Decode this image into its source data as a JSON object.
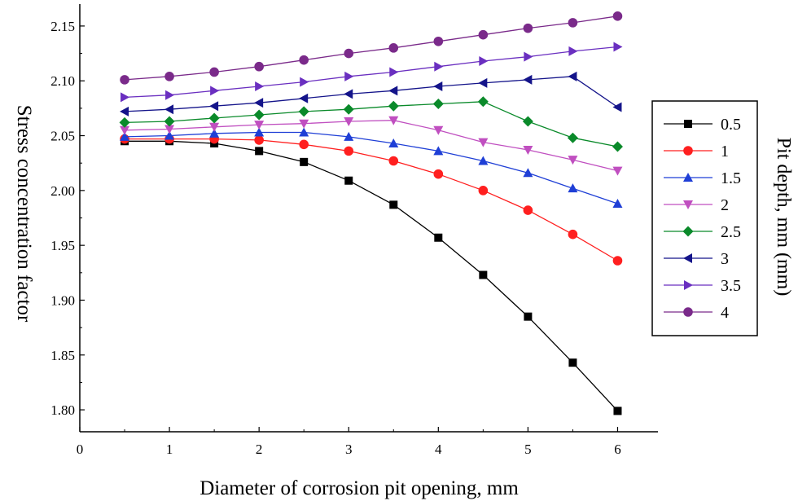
{
  "chart_data": {
    "type": "line",
    "title": "",
    "xlabel": "Diameter of corrosion pit opening, mm",
    "ylabel": "Stress concentration factor",
    "legend_title": "Pit depth, mm (mm)",
    "legend_position": "right",
    "xlim": [
      0,
      6.45
    ],
    "ylim": [
      1.78,
      2.17
    ],
    "xticks": [
      0,
      1,
      2,
      3,
      4,
      5,
      6
    ],
    "yticks": [
      1.8,
      1.85,
      1.9,
      1.95,
      2.0,
      2.05,
      2.1,
      2.15
    ],
    "x": [
      0.5,
      1,
      1.5,
      2,
      2.5,
      3,
      3.5,
      4,
      4.5,
      5,
      5.5,
      6
    ],
    "grid": false,
    "series": [
      {
        "name": "0.5",
        "color": "#000000",
        "marker": "square",
        "values": [
          2.045,
          2.045,
          2.043,
          2.036,
          2.026,
          2.009,
          1.987,
          1.957,
          1.923,
          1.885,
          1.843,
          1.799
        ]
      },
      {
        "name": "1",
        "color": "#ff1f1f",
        "marker": "circle",
        "values": [
          2.047,
          2.047,
          2.047,
          2.046,
          2.042,
          2.036,
          2.027,
          2.015,
          2.0,
          1.982,
          1.96,
          1.936
        ]
      },
      {
        "name": "1.5",
        "color": "#1f3fd6",
        "marker": "triangle-up",
        "values": [
          2.049,
          2.05,
          2.052,
          2.053,
          2.053,
          2.049,
          2.043,
          2.036,
          2.027,
          2.016,
          2.002,
          1.988
        ]
      },
      {
        "name": "2",
        "color": "#c04fc0",
        "marker": "triangle-down",
        "values": [
          2.055,
          2.056,
          2.058,
          2.06,
          2.061,
          2.063,
          2.064,
          2.055,
          2.044,
          2.037,
          2.028,
          2.018
        ]
      },
      {
        "name": "2.5",
        "color": "#0a8a2a",
        "marker": "diamond",
        "values": [
          2.062,
          2.063,
          2.066,
          2.069,
          2.072,
          2.074,
          2.077,
          2.079,
          2.081,
          2.063,
          2.048,
          2.04
        ]
      },
      {
        "name": "3",
        "color": "#14148a",
        "marker": "triangle-left",
        "values": [
          2.072,
          2.074,
          2.077,
          2.08,
          2.084,
          2.088,
          2.091,
          2.095,
          2.098,
          2.101,
          2.104,
          2.076
        ]
      },
      {
        "name": "3.5",
        "color": "#6a2fc0",
        "marker": "triangle-right",
        "values": [
          2.085,
          2.087,
          2.091,
          2.095,
          2.099,
          2.104,
          2.108,
          2.113,
          2.118,
          2.122,
          2.127,
          2.131
        ]
      },
      {
        "name": "4",
        "color": "#7a2a8a",
        "marker": "circle",
        "values": [
          2.101,
          2.104,
          2.108,
          2.113,
          2.119,
          2.125,
          2.13,
          2.136,
          2.142,
          2.148,
          2.153,
          2.159
        ]
      }
    ]
  }
}
